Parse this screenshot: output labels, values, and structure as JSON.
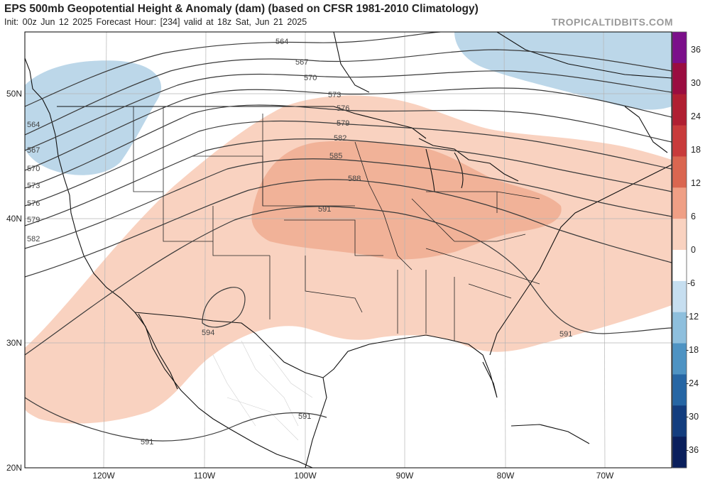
{
  "header": {
    "title": "EPS 500mb Geopotential Height & Anomaly (dam) (based on CFSR 1981-2010 Climatology)",
    "subtitle": "Init: 00z Jun 12 2025   Forecast Hour: [234]   valid at 18z Sat, Jun 21 2025",
    "brand": "TROPICALTIDBITS.COM"
  },
  "axes": {
    "lat_labels": [
      "50N",
      "40N",
      "30N",
      "20N"
    ],
    "lon_labels": [
      "120W",
      "110W",
      "100W",
      "90W",
      "80W",
      "70W"
    ]
  },
  "contours": {
    "labels": [
      "564",
      "567",
      "570",
      "573",
      "576",
      "579",
      "582",
      "585",
      "588",
      "591",
      "594"
    ]
  },
  "colorbar": {
    "ticks": [
      "36",
      "30",
      "24",
      "18",
      "12",
      "6",
      "0",
      "-6",
      "-12",
      "-18",
      "-24",
      "-30",
      "-36"
    ],
    "colors": [
      "#7b0f8a",
      "#9a0d40",
      "#b01f32",
      "#c83b3b",
      "#da6650",
      "#ef9f85",
      "#f9d2c0",
      "#ffffff",
      "#c6def0",
      "#8ebfdd",
      "#4e93c3",
      "#2666a4",
      "#133d7e",
      "#0a1f5c"
    ]
  },
  "map": {
    "land_color": "#ffffff",
    "border_color": "#111111",
    "anomaly_light_warm": "#f9d2c0",
    "anomaly_mid_warm": "#f1b298",
    "anomaly_light_cool": "#bcd7e9"
  }
}
